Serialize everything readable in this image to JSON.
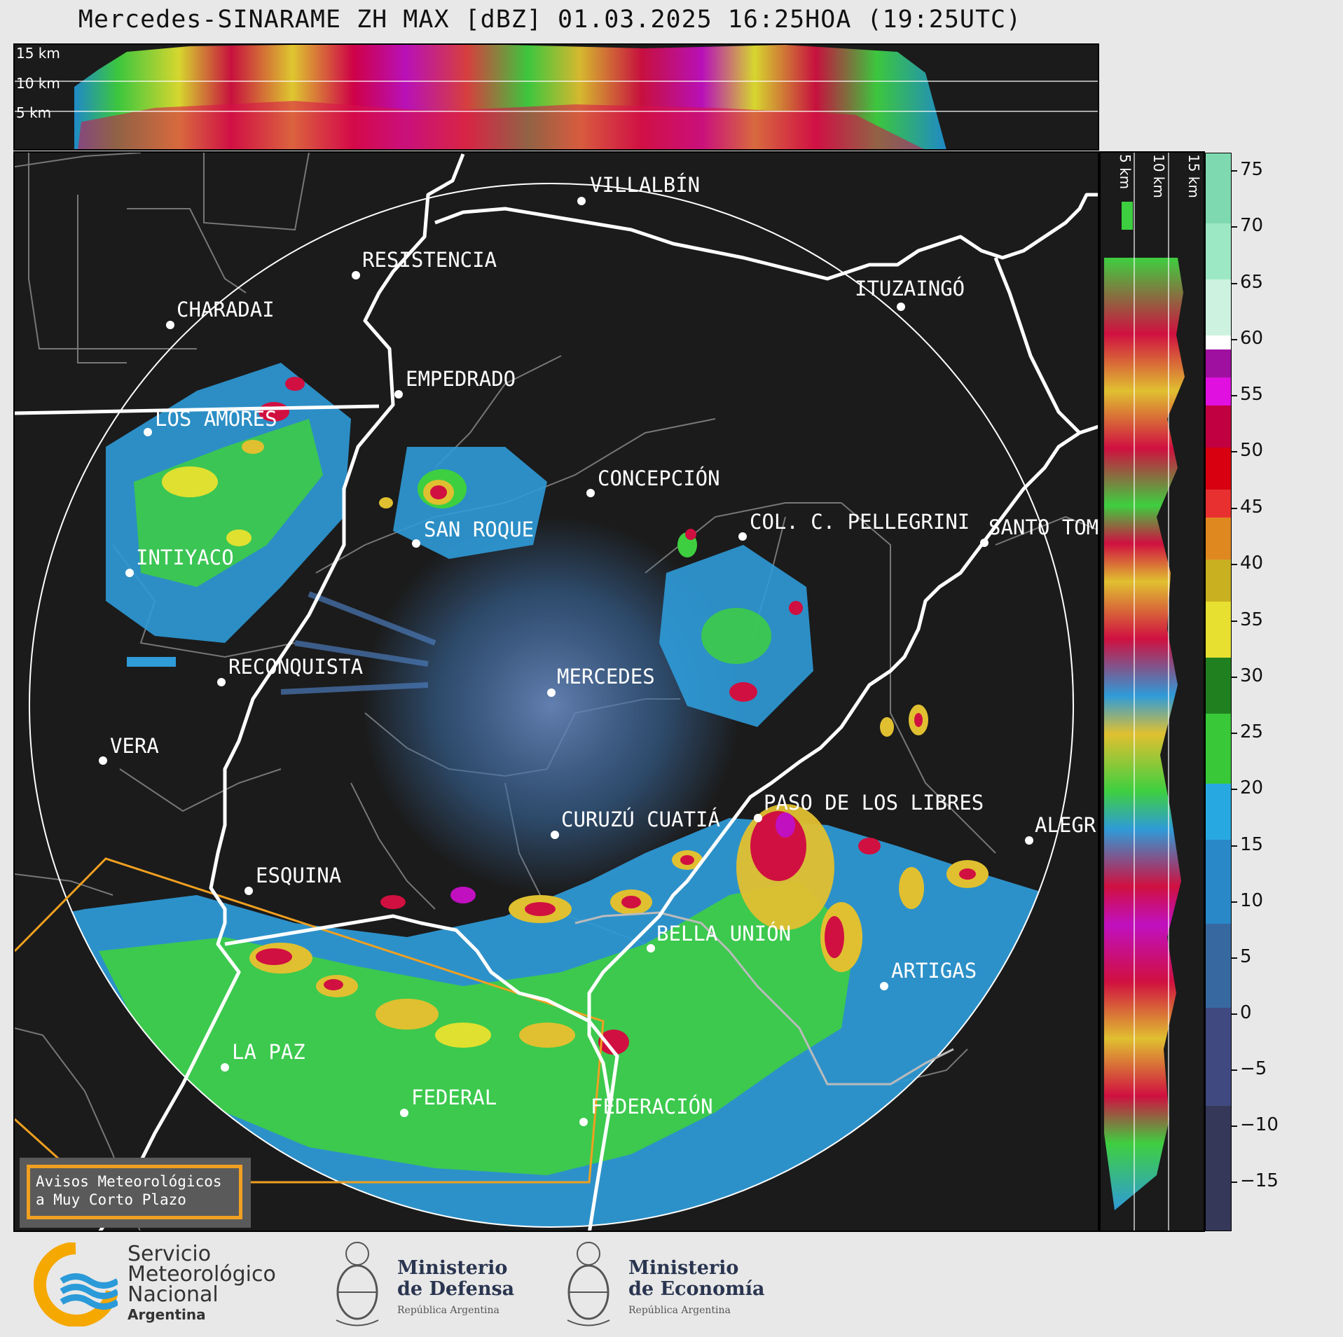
{
  "title": "Mercedes-SINARAME ZH MAX [dBZ] 01.03.2025 16:25HOA (19:25UTC)",
  "top_panel": {
    "km_labels": [
      "15 km",
      "10 km",
      "5 km"
    ]
  },
  "side_panel": {
    "km_labels": [
      "5 km",
      "10 km",
      "15 km"
    ]
  },
  "colorbar": {
    "ticks": [
      "75",
      "70",
      "65",
      "60",
      "55",
      "50",
      "45",
      "40",
      "35",
      "30",
      "25",
      "20",
      "15",
      "10",
      "5",
      "0",
      "−5",
      "−10",
      "−15"
    ],
    "range_dbz": [
      -20,
      77
    ]
  },
  "cities": [
    {
      "name": "VILLALBÍN"
    },
    {
      "name": "RESISTENCIA"
    },
    {
      "name": "CHARADAI"
    },
    {
      "name": "ITUZAINGÓ"
    },
    {
      "name": "EMPEDRADO"
    },
    {
      "name": "LOS AMORES"
    },
    {
      "name": "CONCEPCIÓN"
    },
    {
      "name": "SAN ROQUE"
    },
    {
      "name": "COL. C. PELLEGRINI"
    },
    {
      "name": "SANTO TOM"
    },
    {
      "name": "INTIYACO"
    },
    {
      "name": "RECONQUISTA"
    },
    {
      "name": "MERCEDES"
    },
    {
      "name": "VERA"
    },
    {
      "name": "PASO DE LOS LIBRES"
    },
    {
      "name": "CURUZÚ CUATIÁ"
    },
    {
      "name": "ALEGR"
    },
    {
      "name": "ESQUINA"
    },
    {
      "name": "BELLA UNIÓN"
    },
    {
      "name": "ARTIGAS"
    },
    {
      "name": "LA PAZ"
    },
    {
      "name": "FEDERAL"
    },
    {
      "name": "FEDERACIÓN"
    }
  ],
  "warning_box": {
    "line1": "Avisos Meteorológicos",
    "line2": "a Muy Corto Plazo"
  },
  "footer": {
    "smn_line1": "Servicio",
    "smn_line2": "Meteorológico",
    "smn_line3": "Nacional",
    "smn_line4": "Argentina",
    "defensa_line1": "Ministerio",
    "defensa_line2": "de Defensa",
    "defensa_line3": "República Argentina",
    "economia_line1": "Ministerio",
    "economia_line2": "de Economía",
    "economia_line3": "República Argentina"
  },
  "colors": {
    "background": "#1b1b1b",
    "river": "#ffffff",
    "border_lines": "#777777",
    "warning_polygon": "#f0a020"
  }
}
